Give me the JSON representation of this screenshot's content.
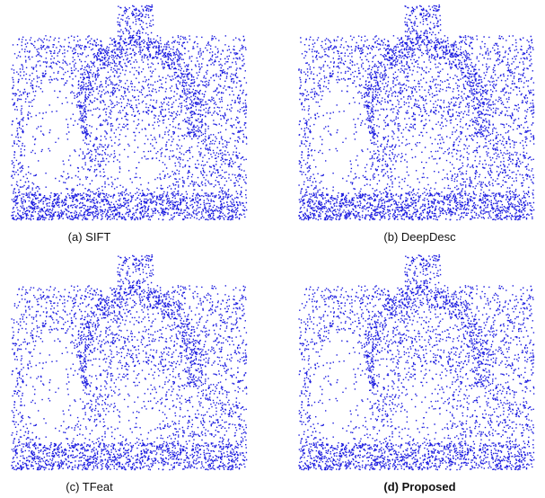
{
  "panels": [
    {
      "caption": "(a) SIFT"
    },
    {
      "caption": "(b) DeepDesc"
    },
    {
      "caption": "(c) TFeat"
    },
    {
      "caption": "(d) Proposed"
    }
  ]
}
